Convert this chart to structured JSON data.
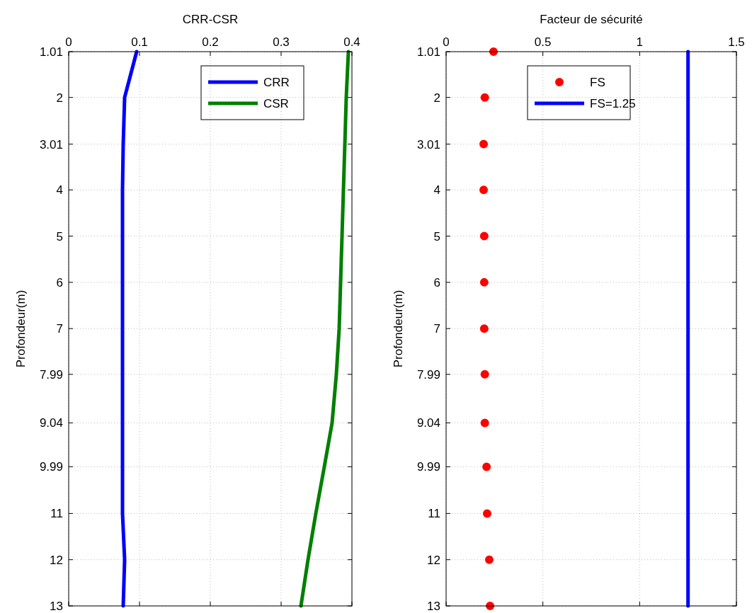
{
  "chart_data": [
    {
      "type": "line",
      "title": "CRR-CSR",
      "ylabel": "Profondeur(m)",
      "orientation": "horizontal",
      "xlim": [
        0,
        0.4
      ],
      "xticks": [
        0,
        0.1,
        0.2,
        0.3,
        0.4
      ],
      "ylim": [
        13,
        1.01
      ],
      "yticks": [
        1.01,
        2,
        3.01,
        4,
        5,
        6,
        7,
        7.99,
        9.04,
        9.99,
        11,
        12,
        13
      ],
      "grid": true,
      "legend": "top right",
      "line_style": "solid",
      "series": [
        {
          "name": "CRR",
          "color": "#0000ff",
          "x": [
            1.01,
            2,
            3.01,
            4,
            5,
            6,
            7,
            7.99,
            9.04,
            9.99,
            11,
            12,
            13
          ],
          "values": [
            0.096,
            0.079,
            0.077,
            0.076,
            0.076,
            0.076,
            0.076,
            0.076,
            0.076,
            0.076,
            0.076,
            0.079,
            0.077
          ]
        },
        {
          "name": "CSR",
          "color": "#007f00",
          "x": [
            1.01,
            2,
            3.01,
            4,
            5,
            6,
            7,
            7.99,
            9.04,
            9.99,
            11,
            12,
            13
          ],
          "values": [
            0.395,
            0.392,
            0.39,
            0.388,
            0.386,
            0.384,
            0.382,
            0.378,
            0.372,
            0.361,
            0.349,
            0.338,
            0.328
          ]
        }
      ]
    },
    {
      "type": "scatter",
      "title": "Facteur de sécurité",
      "ylabel": "Profondeur(m)",
      "orientation": "horizontal",
      "xlim": [
        0,
        1.5
      ],
      "xticks": [
        0,
        0.5,
        1,
        1.5
      ],
      "ylim": [
        13,
        1.01
      ],
      "yticks": [
        1.01,
        2,
        3.01,
        4,
        5,
        6,
        7,
        7.99,
        9.04,
        9.99,
        11,
        12,
        13
      ],
      "grid": true,
      "legend": "top left",
      "series": [
        {
          "name": "FS",
          "color": "#ff0000",
          "marker": "circle",
          "x": [
            1.01,
            2,
            3.01,
            4,
            5,
            6,
            7,
            7.99,
            9.04,
            9.99,
            11,
            12,
            13
          ],
          "values": [
            0.245,
            0.2,
            0.194,
            0.194,
            0.197,
            0.197,
            0.197,
            0.2,
            0.2,
            0.209,
            0.212,
            0.223,
            0.227
          ]
        },
        {
          "name": "FS=1.25",
          "type": "line",
          "color": "#0000ff",
          "x": [
            1.01,
            13
          ],
          "values": [
            1.25,
            1.25
          ]
        }
      ]
    }
  ]
}
